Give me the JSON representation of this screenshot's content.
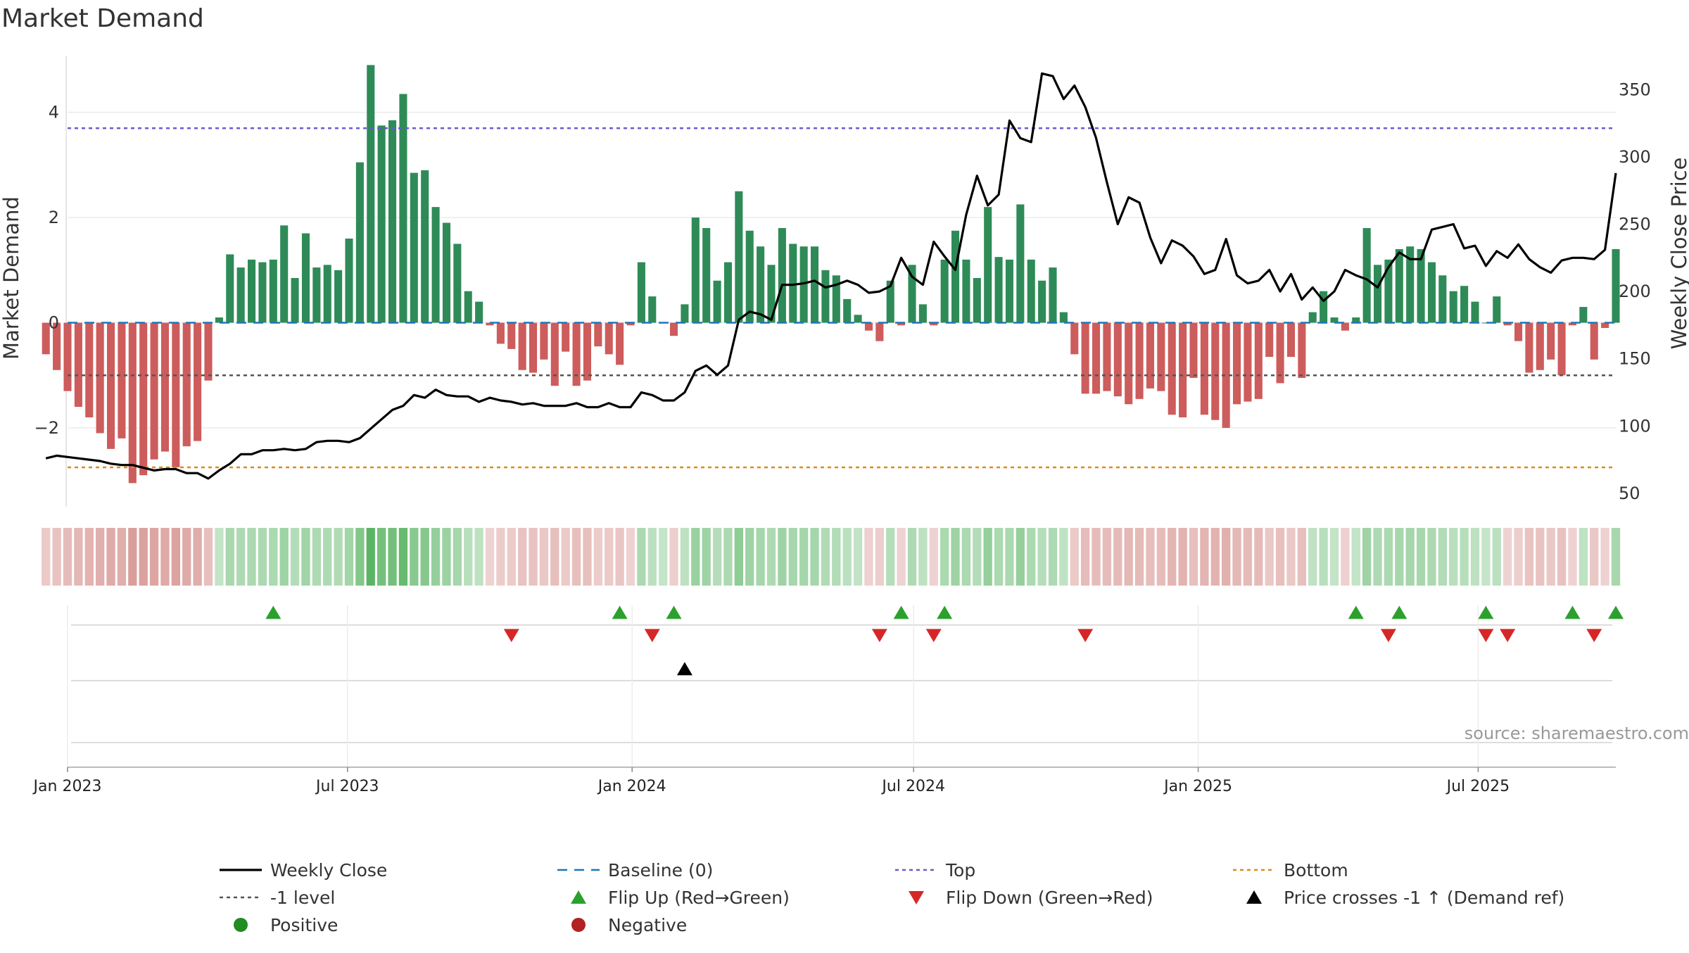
{
  "title": "Market Demand",
  "source_note": "source: sharemaestro.com",
  "colors": {
    "pos_bar": "#2e8b57",
    "neg_bar": "#cd5c5c",
    "price_line": "#000000",
    "baseline": "#1f77b4",
    "top": "#6a5acd",
    "bottom": "#d98c1a",
    "minus1": "#555555",
    "flip_up": "#2ca02c",
    "flip_down": "#d62728",
    "cross": "#000000",
    "positive_dot": "#228b22",
    "negative_dot": "#b22222"
  },
  "legend": [
    {
      "label": "Weekly Close",
      "kind": "line-solid",
      "color": "#000000"
    },
    {
      "label": "Baseline (0)",
      "kind": "line-dash",
      "color": "#1f77b4"
    },
    {
      "label": "Top",
      "kind": "line-dot",
      "color": "#6a5acd"
    },
    {
      "label": "Bottom",
      "kind": "line-dot",
      "color": "#d98c1a"
    },
    {
      "label": "-1 level",
      "kind": "line-dot",
      "color": "#555555"
    },
    {
      "label": "Flip Up (Red→Green)",
      "kind": "tri-up",
      "color": "#2ca02c"
    },
    {
      "label": "Flip Down (Green→Red)",
      "kind": "tri-down",
      "color": "#d62728"
    },
    {
      "label": "Price crosses -1 ↑ (Demand ref)",
      "kind": "tri-up",
      "color": "#000000"
    },
    {
      "label": "Positive",
      "kind": "dot",
      "color": "#228b22"
    },
    {
      "label": "Negative",
      "kind": "dot",
      "color": "#b22222"
    }
  ],
  "chart_data": {
    "type": "bar",
    "title": "Market Demand",
    "ylabel": "Market Demand",
    "y2label": "Weekly Close Price",
    "ylim": [
      -3.5,
      5.2
    ],
    "y2lim": [
      40,
      380
    ],
    "yticks": [
      -2,
      0,
      2,
      4
    ],
    "y2ticks": [
      50,
      100,
      150,
      200,
      250,
      300,
      350
    ],
    "x_start": "2023-01-01",
    "x_end": "2025-09-28",
    "x_ticks": [
      {
        "date": "2023-01-01",
        "label": "Jan 2023"
      },
      {
        "date": "2023-07-01",
        "label": "Jul 2023"
      },
      {
        "date": "2024-01-01",
        "label": "Jan 2024"
      },
      {
        "date": "2024-07-01",
        "label": "Jul 2024"
      },
      {
        "date": "2025-01-01",
        "label": "Jan 2025"
      },
      {
        "date": "2025-07-01",
        "label": "Jul 2025"
      }
    ],
    "reference_lines": {
      "baseline": 0,
      "top": 3.7,
      "bottom": -2.75,
      "minus1": -1.0
    },
    "start_week": "2022-12-18",
    "demand": [
      -0.6,
      -0.9,
      -1.3,
      -1.6,
      -1.8,
      -2.1,
      -2.4,
      -2.2,
      -3.05,
      -2.9,
      -2.6,
      -2.45,
      -2.75,
      -2.35,
      -2.25,
      -1.1,
      0.1,
      1.3,
      1.05,
      1.2,
      1.15,
      1.2,
      1.85,
      0.85,
      1.7,
      1.05,
      1.1,
      1.0,
      1.6,
      3.05,
      4.9,
      3.75,
      3.85,
      4.35,
      2.85,
      2.9,
      2.2,
      1.9,
      1.5,
      0.6,
      0.4,
      -0.05,
      -0.4,
      -0.5,
      -0.9,
      -0.95,
      -0.7,
      -1.2,
      -0.55,
      -1.2,
      -1.1,
      -0.45,
      -0.6,
      -0.8,
      -0.05,
      1.15,
      0.5,
      0.0,
      -0.25,
      0.35,
      2.0,
      1.8,
      0.8,
      1.15,
      2.5,
      1.75,
      1.45,
      1.1,
      1.8,
      1.5,
      1.45,
      1.45,
      1.0,
      0.9,
      0.45,
      0.15,
      -0.15,
      -0.35,
      0.8,
      -0.05,
      1.1,
      0.35,
      -0.05,
      1.2,
      1.75,
      1.2,
      0.85,
      2.2,
      1.25,
      1.2,
      2.25,
      1.2,
      0.8,
      1.05,
      0.2,
      -0.6,
      -1.35,
      -1.35,
      -1.3,
      -1.4,
      -1.55,
      -1.45,
      -1.25,
      -1.3,
      -1.75,
      -1.8,
      -1.05,
      -1.75,
      -1.85,
      -2.0,
      -1.55,
      -1.5,
      -1.45,
      -0.65,
      -1.15,
      -0.65,
      -1.05,
      0.2,
      0.6,
      0.1,
      -0.15,
      0.1,
      1.8,
      1.1,
      1.2,
      1.4,
      1.45,
      1.4,
      1.15,
      0.9,
      0.6,
      0.7,
      0.4,
      0.0,
      0.5,
      -0.05,
      -0.35,
      -0.95,
      -0.9,
      -0.7,
      -1.0,
      -0.05,
      0.3,
      -0.7,
      -0.1,
      1.4
    ],
    "price": [
      76,
      78,
      77,
      76,
      75,
      74,
      72,
      71,
      71,
      69,
      67,
      68,
      68,
      65,
      65,
      61,
      67,
      72,
      79,
      79,
      82,
      82,
      83,
      82,
      83,
      88,
      89,
      89,
      88,
      91,
      98,
      105,
      112,
      115,
      123,
      121,
      127,
      123,
      122,
      122,
      118,
      121,
      119,
      118,
      116,
      117,
      115,
      115,
      115,
      117,
      114,
      114,
      117,
      114,
      114,
      125,
      123,
      119,
      119,
      125,
      141,
      145,
      138,
      145,
      179,
      185,
      183,
      179,
      205,
      205,
      206,
      208,
      203,
      205,
      208,
      205,
      199,
      200,
      204,
      225,
      211,
      205,
      237,
      226,
      216,
      257,
      286,
      264,
      272,
      327,
      314,
      311,
      362,
      360,
      343,
      353,
      337,
      314,
      281,
      250,
      270,
      266,
      240,
      221,
      238,
      234,
      226,
      213,
      216,
      239,
      212,
      206,
      208,
      216,
      200,
      213,
      194,
      203,
      193,
      200,
      216,
      212,
      209,
      203,
      218,
      229,
      224,
      224,
      246,
      248,
      250,
      232,
      234,
      219,
      230,
      225,
      235,
      224,
      218,
      214,
      223,
      225,
      225,
      224,
      231,
      288
    ]
  },
  "flip_up_dates": [
    "2023-05-14",
    "2023-12-24",
    "2024-01-28",
    "2024-06-23",
    "2024-07-21",
    "2025-04-13",
    "2025-05-11",
    "2025-07-06",
    "2025-08-31",
    "2025-09-28"
  ],
  "flip_down_dates": [
    "2023-10-15",
    "2024-01-14",
    "2024-06-09",
    "2024-07-14",
    "2024-10-20",
    "2025-05-04",
    "2025-07-06",
    "2025-07-20",
    "2025-09-14"
  ],
  "cross_dates": [
    "2024-02-04"
  ]
}
